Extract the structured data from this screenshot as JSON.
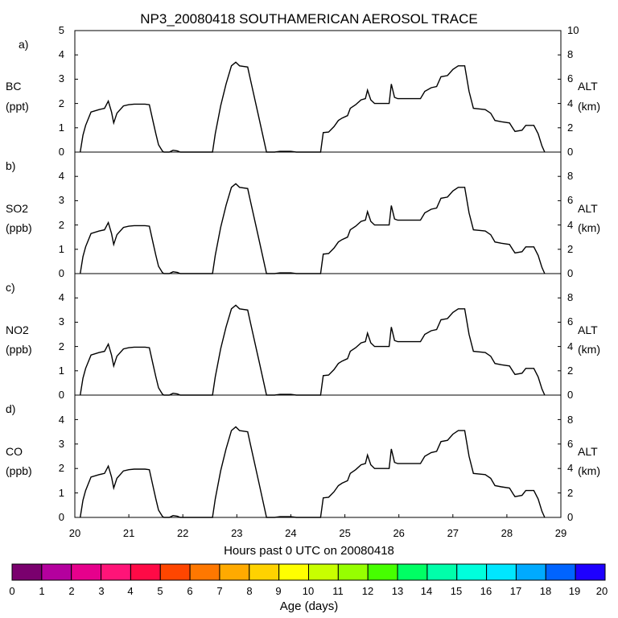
{
  "title": "NP3_20080418 SOUTHAMERICAN AEROSOL TRACE",
  "xlabel": "Hours past 0 UTC on 20080418",
  "colorbar": {
    "label": "Age (days)",
    "ticks": [
      "0",
      "1",
      "2",
      "3",
      "4",
      "5",
      "6",
      "7",
      "8",
      "9",
      "10",
      "11",
      "12",
      "13",
      "14",
      "15",
      "16",
      "17",
      "18",
      "19",
      "20"
    ],
    "colors": [
      "#7a006e",
      "#b4009e",
      "#e6008c",
      "#ff1478",
      "#ff0a46",
      "#ff4600",
      "#ff7800",
      "#ffaa00",
      "#ffd200",
      "#ffff00",
      "#c8ff00",
      "#96ff00",
      "#46ff00",
      "#00ff64",
      "#00ffaa",
      "#00ffdc",
      "#00e6ff",
      "#00aaff",
      "#0064ff",
      "#1e00ff"
    ]
  },
  "chart_data": [
    {
      "panel": "a)",
      "type": "line",
      "ylabel_top": "BC",
      "ylabel_bottom": "(ppt)",
      "ylim": [
        0,
        5
      ],
      "y_ticks": [
        "0",
        "1",
        "2",
        "3",
        "4",
        "5"
      ],
      "y2label_top": "ALT",
      "y2label_bottom": "(km)",
      "y2lim": [
        0,
        10
      ],
      "y2_ticks": [
        "0",
        "2",
        "4",
        "6",
        "8",
        "10"
      ]
    },
    {
      "panel": "b)",
      "type": "line",
      "ylabel_top": "SO2",
      "ylabel_bottom": "(ppb)",
      "ylim": [
        0,
        5
      ],
      "y_ticks": [
        "0",
        "1",
        "2",
        "3",
        "4"
      ],
      "y2label_top": "ALT",
      "y2label_bottom": "(km)",
      "y2lim": [
        0,
        10
      ],
      "y2_ticks": [
        "0",
        "2",
        "4",
        "6",
        "8"
      ]
    },
    {
      "panel": "c)",
      "type": "line",
      "ylabel_top": "NO2",
      "ylabel_bottom": "(ppb)",
      "ylim": [
        0,
        5
      ],
      "y_ticks": [
        "0",
        "1",
        "2",
        "3",
        "4"
      ],
      "y2label_top": "ALT",
      "y2label_bottom": "(km)",
      "y2lim": [
        0,
        10
      ],
      "y2_ticks": [
        "0",
        "2",
        "4",
        "6",
        "8"
      ]
    },
    {
      "panel": "d)",
      "type": "line",
      "ylabel_top": "CO",
      "ylabel_bottom": "(ppb)",
      "ylim": [
        0,
        5
      ],
      "y_ticks": [
        "0",
        "1",
        "2",
        "3",
        "4"
      ],
      "y2label_top": "ALT",
      "y2label_bottom": "(km)",
      "y2lim": [
        0,
        10
      ],
      "y2_ticks": [
        "0",
        "2",
        "4",
        "6",
        "8"
      ],
      "x_ticks": [
        "20",
        "21",
        "22",
        "23",
        "24",
        "25",
        "26",
        "27",
        "28",
        "29"
      ]
    }
  ],
  "xlim": [
    20,
    29
  ],
  "altitude_km": [
    [
      20.1,
      0
    ],
    [
      20.15,
      1.4
    ],
    [
      20.2,
      2.2
    ],
    [
      20.3,
      3.3
    ],
    [
      20.45,
      3.5
    ],
    [
      20.55,
      3.6
    ],
    [
      20.62,
      4.2
    ],
    [
      20.68,
      3.3
    ],
    [
      20.72,
      2.4
    ],
    [
      20.78,
      3.2
    ],
    [
      20.9,
      3.8
    ],
    [
      21.0,
      3.9
    ],
    [
      21.1,
      3.95
    ],
    [
      21.3,
      3.95
    ],
    [
      21.38,
      3.9
    ],
    [
      21.45,
      2.5
    ],
    [
      21.5,
      1.5
    ],
    [
      21.55,
      0.6
    ],
    [
      21.62,
      0.1
    ],
    [
      21.65,
      0
    ],
    [
      21.75,
      0
    ],
    [
      21.82,
      0.15
    ],
    [
      21.9,
      0.1
    ],
    [
      21.95,
      0
    ],
    [
      22.1,
      0
    ],
    [
      22.35,
      0
    ],
    [
      22.55,
      0
    ],
    [
      22.6,
      1.5
    ],
    [
      22.7,
      3.8
    ],
    [
      22.8,
      5.6
    ],
    [
      22.9,
      7.1
    ],
    [
      22.98,
      7.4
    ],
    [
      23.05,
      7.1
    ],
    [
      23.2,
      7.0
    ],
    [
      23.25,
      6.0
    ],
    [
      23.4,
      3.0
    ],
    [
      23.55,
      0
    ],
    [
      23.7,
      0
    ],
    [
      23.8,
      0.06
    ],
    [
      24.0,
      0.06
    ],
    [
      24.1,
      0
    ],
    [
      24.5,
      0
    ],
    [
      24.55,
      0
    ],
    [
      24.6,
      1.6
    ],
    [
      24.7,
      1.65
    ],
    [
      24.8,
      2.1
    ],
    [
      24.88,
      2.6
    ],
    [
      24.95,
      2.8
    ],
    [
      25.05,
      3.0
    ],
    [
      25.1,
      3.6
    ],
    [
      25.2,
      3.9
    ],
    [
      25.3,
      4.3
    ],
    [
      25.38,
      4.4
    ],
    [
      25.42,
      5.1
    ],
    [
      25.48,
      4.3
    ],
    [
      25.55,
      4.0
    ],
    [
      25.82,
      4.0
    ],
    [
      25.86,
      5.6
    ],
    [
      25.92,
      4.5
    ],
    [
      25.98,
      4.4
    ],
    [
      26.4,
      4.4
    ],
    [
      26.48,
      5.0
    ],
    [
      26.6,
      5.3
    ],
    [
      26.7,
      5.4
    ],
    [
      26.78,
      6.2
    ],
    [
      26.9,
      6.3
    ],
    [
      27.0,
      6.8
    ],
    [
      27.1,
      7.1
    ],
    [
      27.22,
      7.1
    ],
    [
      27.3,
      5.0
    ],
    [
      27.38,
      3.6
    ],
    [
      27.6,
      3.5
    ],
    [
      27.7,
      3.2
    ],
    [
      27.78,
      2.6
    ],
    [
      27.9,
      2.5
    ],
    [
      28.05,
      2.4
    ],
    [
      28.12,
      1.9
    ],
    [
      28.15,
      1.7
    ],
    [
      28.28,
      1.8
    ],
    [
      28.35,
      2.2
    ],
    [
      28.5,
      2.2
    ],
    [
      28.58,
      1.5
    ],
    [
      28.65,
      0.5
    ],
    [
      28.7,
      0
    ]
  ]
}
